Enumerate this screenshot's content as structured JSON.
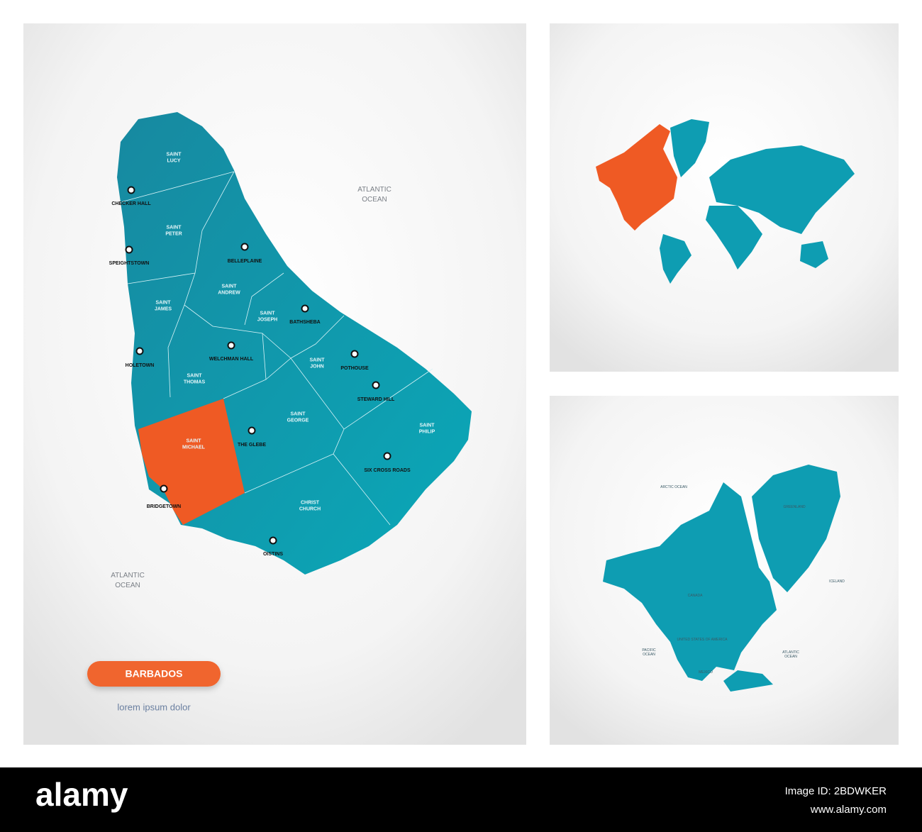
{
  "barbados_map": {
    "parishes": [
      {
        "lines": [
          "SAINT",
          "LUCY"
        ]
      },
      {
        "lines": [
          "SAINT",
          "PETER"
        ]
      },
      {
        "lines": [
          "SAINT",
          "JAMES"
        ]
      },
      {
        "lines": [
          "SAINT",
          "ANDREW"
        ]
      },
      {
        "lines": [
          "SAINT",
          "JOSEPH"
        ]
      },
      {
        "lines": [
          "SAINT",
          "THOMAS"
        ]
      },
      {
        "lines": [
          "SAINT",
          "JOHN"
        ]
      },
      {
        "lines": [
          "SAINT",
          "GEORGE"
        ]
      },
      {
        "lines": [
          "SAINT",
          "PHILIP"
        ]
      },
      {
        "lines": [
          "SAINT",
          "MICHAEL"
        ]
      },
      {
        "lines": [
          "CHRIST",
          "CHURCH"
        ]
      }
    ],
    "towns": [
      "CHECKER HALL",
      "SPEIGHTSTOWN",
      "BELLEPLAINE",
      "BATHSHEBA",
      "HOLETOWN",
      "WELCHMAN HALL",
      "POTHOUSE",
      "STEWARD HILL",
      "THE GLEBE",
      "SIX CROSS ROADS",
      "BRIDGETOWN",
      "OISTINS"
    ],
    "oceans": [
      {
        "lines": [
          "ATLANTIC",
          "OCEAN"
        ]
      },
      {
        "lines": [
          "ATLANTIC",
          "OCEAN"
        ]
      }
    ]
  },
  "badge": {
    "title": "BARBADOS",
    "subtitle": "lorem ipsum dolor"
  },
  "north_america_map": {
    "labels": [
      {
        "lines": [
          "ARCTIC OCEAN"
        ]
      },
      {
        "lines": [
          "GREENLAND"
        ]
      },
      {
        "lines": [
          "ICELAND"
        ]
      },
      {
        "lines": [
          "CANADA"
        ]
      },
      {
        "lines": [
          "UNITED STATES OF AMERICA"
        ]
      },
      {
        "lines": [
          "MEXICO"
        ]
      },
      {
        "lines": [
          "PACIFIC",
          "OCEAN"
        ]
      },
      {
        "lines": [
          "ATLANTIC",
          "OCEAN"
        ]
      }
    ]
  },
  "footer": {
    "brand": "alamy",
    "image_id": "Image ID: 2BDWKER",
    "url": "www.alamy.com"
  }
}
